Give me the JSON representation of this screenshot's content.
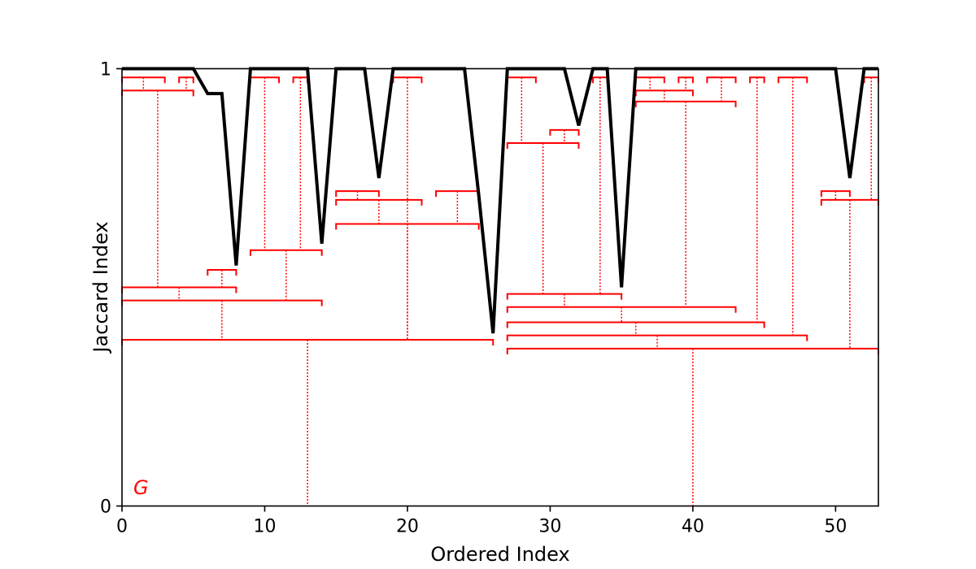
{
  "chart_data": {
    "type": "line",
    "title": "",
    "xlabel": "Ordered Index",
    "ylabel": "Jaccard Index",
    "xlim": [
      0,
      53
    ],
    "ylim": [
      0,
      1
    ],
    "xticks": [
      0,
      10,
      20,
      30,
      40,
      50
    ],
    "yticks": [
      0,
      1
    ],
    "grid": false,
    "annotation": {
      "text": "G",
      "color": "#ff0000"
    },
    "line_color": "#000000",
    "tree_color": "#ff0000",
    "series": [
      {
        "x": [
          0,
          1,
          2,
          3,
          4,
          5,
          6,
          7,
          8,
          9,
          10,
          11,
          12,
          13,
          14,
          15,
          16,
          17,
          18,
          19,
          20,
          21,
          22,
          23,
          24,
          25,
          26,
          27,
          28,
          29,
          30,
          31,
          32,
          33,
          34,
          35,
          36,
          37,
          38,
          39,
          40,
          41,
          42,
          43,
          44,
          45,
          46,
          47,
          48,
          49,
          50,
          51,
          52,
          53
        ],
        "values": [
          1,
          1,
          1,
          1,
          1,
          1,
          0.943,
          0.943,
          0.55,
          1,
          1,
          1,
          1,
          1,
          0.6,
          1,
          1,
          1,
          0.75,
          1,
          1,
          1,
          1,
          1,
          1,
          0.71,
          0.395,
          1,
          1,
          1,
          1,
          1,
          0.87,
          1,
          1,
          0.5,
          1,
          1,
          1,
          1,
          1,
          1,
          1,
          1,
          1,
          1,
          1,
          1,
          1,
          1,
          1,
          0.75,
          1,
          1
        ]
      }
    ],
    "brackets": [
      {
        "x1": 0,
        "x2": 3,
        "y": 0.98,
        "stem_y": 0.95
      },
      {
        "x1": 4,
        "x2": 5,
        "y": 0.98,
        "stem_y": 0.95
      },
      {
        "x1": 0,
        "x2": 5,
        "y": 0.95,
        "stem_y": 0.5
      },
      {
        "x1": 6,
        "x2": 8,
        "y": 0.54,
        "stem_y": 0.5
      },
      {
        "x1": 0,
        "x2": 8,
        "y": 0.5,
        "stem_y": 0.47
      },
      {
        "x1": 9,
        "x2": 11,
        "y": 0.98,
        "stem_y": 0.585
      },
      {
        "x1": 12,
        "x2": 13,
        "y": 0.98,
        "stem_y": 0.585
      },
      {
        "x1": 9,
        "x2": 14,
        "y": 0.585,
        "stem_y": 0.47
      },
      {
        "x1": 0,
        "x2": 14,
        "y": 0.47,
        "stem_y": 0.38
      },
      {
        "x1": 15,
        "x2": 18,
        "y": 0.72,
        "stem_y": 0.7
      },
      {
        "x1": 15,
        "x2": 21,
        "y": 0.7,
        "stem_y": 0.645
      },
      {
        "x1": 22,
        "x2": 25,
        "y": 0.72,
        "stem_y": 0.645
      },
      {
        "x1": 15,
        "x2": 25,
        "y": 0.645,
        "stem_y": 0.38
      },
      {
        "x1": 19,
        "x2": 21,
        "y": 0.98,
        "stem_y": 0.38
      },
      {
        "x1": 0,
        "x2": 26,
        "y": 0.38,
        "stem_y": 0
      },
      {
        "x1": 27,
        "x2": 29,
        "y": 0.98,
        "stem_y": 0.83
      },
      {
        "x1": 30,
        "x2": 32,
        "y": 0.86,
        "stem_y": 0.83
      },
      {
        "x1": 27,
        "x2": 32,
        "y": 0.83,
        "stem_y": 0.485
      },
      {
        "x1": 33,
        "x2": 34,
        "y": 0.98,
        "stem_y": 0.485
      },
      {
        "x1": 27,
        "x2": 35,
        "y": 0.485,
        "stem_y": 0.455
      },
      {
        "x1": 36,
        "x2": 38,
        "y": 0.98,
        "stem_y": 0.95
      },
      {
        "x1": 39,
        "x2": 40,
        "y": 0.98,
        "stem_y": 0.95
      },
      {
        "x1": 36,
        "x2": 40,
        "y": 0.95,
        "stem_y": 0.925
      },
      {
        "x1": 41,
        "x2": 43,
        "y": 0.98,
        "stem_y": 0.925
      },
      {
        "x1": 36,
        "x2": 43,
        "y": 0.925,
        "stem_y": 0.455
      },
      {
        "x1": 27,
        "x2": 43,
        "y": 0.455,
        "stem_y": 0.42
      },
      {
        "x1": 44,
        "x2": 45,
        "y": 0.98,
        "stem_y": 0.42
      },
      {
        "x1": 27,
        "x2": 45,
        "y": 0.42,
        "stem_y": 0.39
      },
      {
        "x1": 46,
        "x2": 48,
        "y": 0.98,
        "stem_y": 0.39
      },
      {
        "x1": 27,
        "x2": 48,
        "y": 0.39,
        "stem_y": 0.36
      },
      {
        "x1": 49,
        "x2": 51,
        "y": 0.72,
        "stem_y": 0.7
      },
      {
        "x1": 52,
        "x2": 53,
        "y": 0.98,
        "stem_y": 0.7
      },
      {
        "x1": 49,
        "x2": 53,
        "y": 0.7,
        "stem_y": 0.36
      },
      {
        "x1": 27,
        "x2": 53,
        "y": 0.36,
        "stem_y": 0
      }
    ]
  }
}
